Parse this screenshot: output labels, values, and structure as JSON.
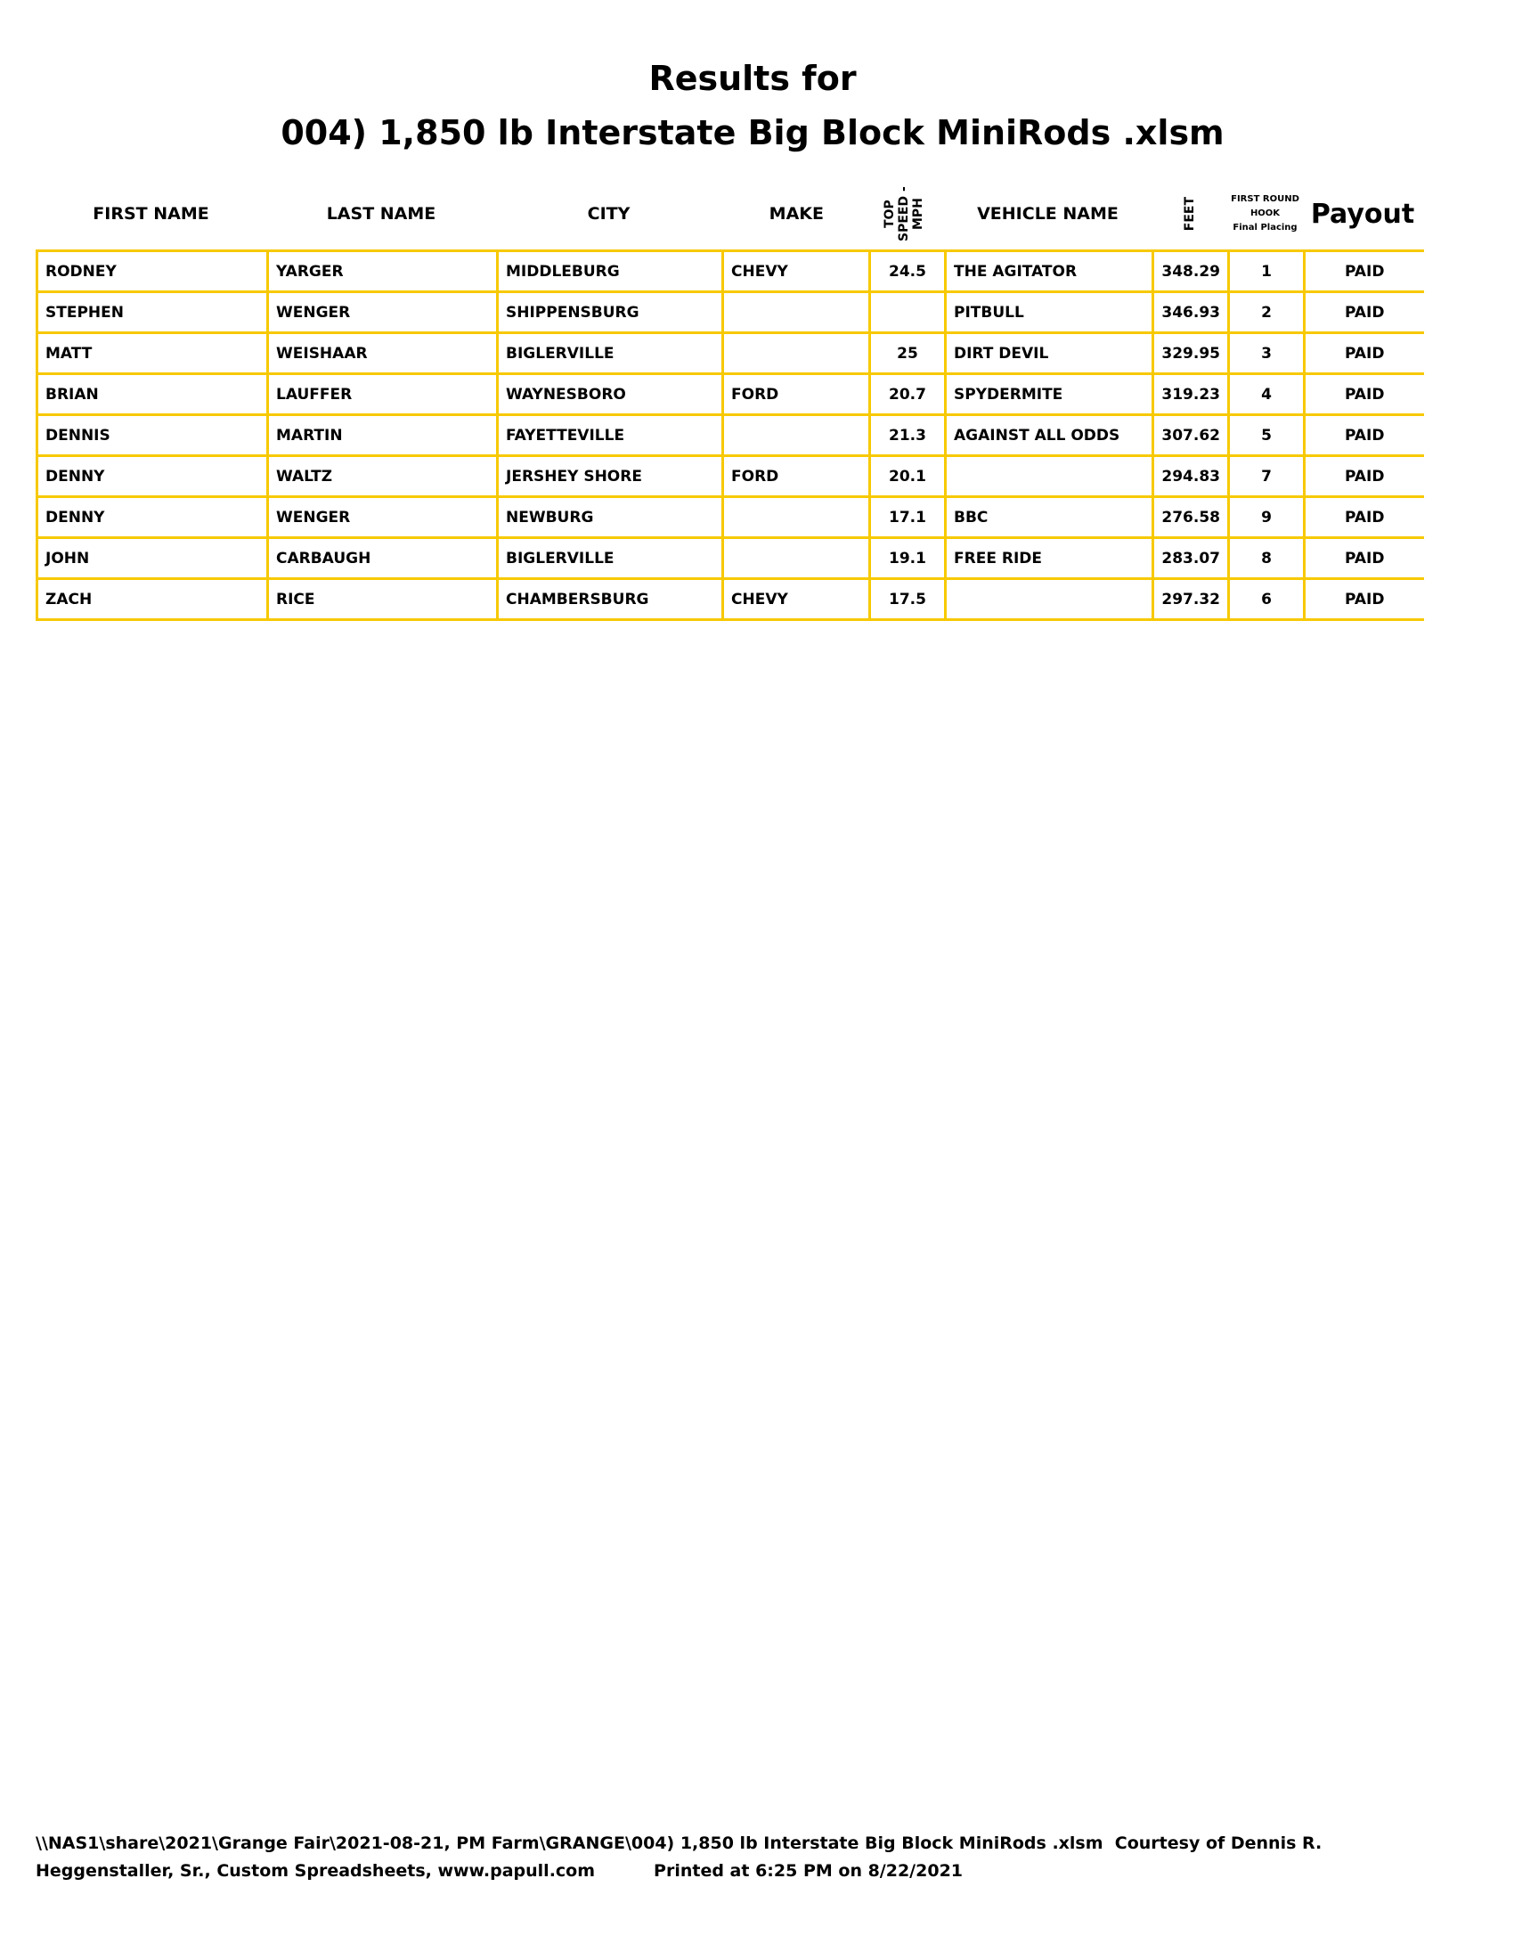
{
  "title_line1": "Results for",
  "title_line2": "004) 1,850 lb Interstate Big Block MiniRods .xlsm",
  "headers": {
    "first_name": "FIRST NAME",
    "last_name": "LAST NAME",
    "city": "CITY",
    "make": "MAKE",
    "top_speed": "TOP SPEED - MPH",
    "vehicle_name": "VEHICLE NAME",
    "feet": "FEET",
    "placing_line1": "FIRST ROUND",
    "placing_line2": "HOOK",
    "placing_line3": "Final Placing",
    "payout": "Payout"
  },
  "border_color": "#f7c900",
  "rows": [
    {
      "first": "RODNEY",
      "last": "YARGER",
      "city": "MIDDLEBURG",
      "make": "CHEVY",
      "speed": "24.5",
      "vehicle": "THE AGITATOR",
      "feet": "348.29",
      "place": "1",
      "payout": "PAID"
    },
    {
      "first": "STEPHEN",
      "last": "WENGER",
      "city": "SHIPPENSBURG",
      "make": "",
      "speed": "",
      "vehicle": "PITBULL",
      "feet": "346.93",
      "place": "2",
      "payout": "PAID"
    },
    {
      "first": "MATT",
      "last": "WEISHAAR",
      "city": "BIGLERVILLE",
      "make": "",
      "speed": "25",
      "vehicle": "DIRT DEVIL",
      "feet": "329.95",
      "place": "3",
      "payout": "PAID"
    },
    {
      "first": "BRIAN",
      "last": "LAUFFER",
      "city": "WAYNESBORO",
      "make": "FORD",
      "speed": "20.7",
      "vehicle": "SPYDERMITE",
      "feet": "319.23",
      "place": "4",
      "payout": "PAID"
    },
    {
      "first": "DENNIS",
      "last": "MARTIN",
      "city": "FAYETTEVILLE",
      "make": "",
      "speed": "21.3",
      "vehicle": "AGAINST ALL ODDS",
      "feet": "307.62",
      "place": "5",
      "payout": "PAID"
    },
    {
      "first": "DENNY",
      "last": "WALTZ",
      "city": "JERSHEY SHORE",
      "make": "FORD",
      "speed": "20.1",
      "vehicle": "",
      "feet": "294.83",
      "place": "7",
      "payout": "PAID"
    },
    {
      "first": "DENNY",
      "last": "WENGER",
      "city": "NEWBURG",
      "make": "",
      "speed": "17.1",
      "vehicle": "BBC",
      "feet": "276.58",
      "place": "9",
      "payout": "PAID"
    },
    {
      "first": "JOHN",
      "last": "CARBAUGH",
      "city": "BIGLERVILLE",
      "make": "",
      "speed": "19.1",
      "vehicle": "FREE RIDE",
      "feet": "283.07",
      "place": "8",
      "payout": "PAID"
    },
    {
      "first": "ZACH",
      "last": "RICE",
      "city": "CHAMBERSBURG",
      "make": "CHEVY",
      "speed": "17.5",
      "vehicle": "",
      "feet": "297.32",
      "place": "6",
      "payout": "PAID"
    }
  ],
  "footer_line1": "\\\\NAS1\\share\\2021\\Grange Fair\\2021-08-21, PM Farm\\GRANGE\\004) 1,850 lb Interstate Big Block MiniRods .xlsm  Courtesy of Dennis R.",
  "footer_line2": "Heggenstaller, Sr., Custom Spreadsheets, www.papull.com",
  "footer_printed": "Printed at 6:25 PM on 8/22/2021"
}
